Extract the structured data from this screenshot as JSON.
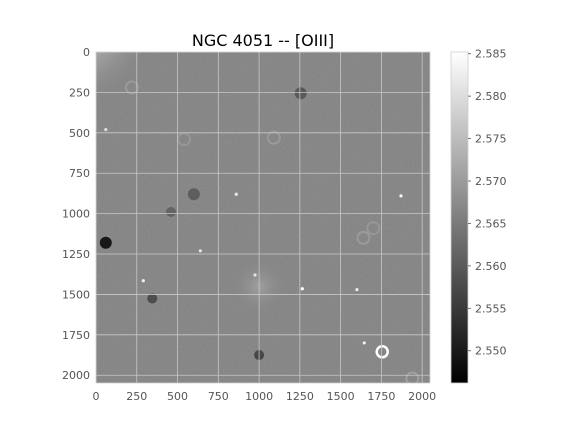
{
  "chart_data": {
    "type": "heatmap",
    "title": "NGC 4051 -- [OIII]",
    "colormap": "gray",
    "grid": true,
    "grid_color": "#c8c8c8",
    "xlim": [
      0,
      2048
    ],
    "ylim": [
      2048,
      0
    ],
    "xticks": [
      0,
      250,
      500,
      750,
      1000,
      1250,
      1500,
      1750,
      2000
    ],
    "yticks": [
      0,
      250,
      500,
      750,
      1000,
      1250,
      1500,
      1750,
      2000
    ],
    "colorbar": {
      "min": 2.5462,
      "max": 2.5852,
      "ticks": [
        "2.550",
        "2.555",
        "2.560",
        "2.565",
        "2.570",
        "2.575",
        "2.580",
        "2.585"
      ],
      "tick_values": [
        2.55,
        2.555,
        2.56,
        2.565,
        2.57,
        2.575,
        2.58,
        2.585
      ]
    },
    "background_level": 2.566,
    "features": [
      {
        "kind": "bright_point",
        "x": 975,
        "y": 1380,
        "value": 2.585
      },
      {
        "kind": "bright_point",
        "x": 1265,
        "y": 1465,
        "value": 2.585
      },
      {
        "kind": "bright_point",
        "x": 1870,
        "y": 890,
        "value": 2.584
      },
      {
        "kind": "bright_point",
        "x": 860,
        "y": 880,
        "value": 2.582
      },
      {
        "kind": "bright_point",
        "x": 290,
        "y": 1415,
        "value": 2.583
      },
      {
        "kind": "bright_point",
        "x": 640,
        "y": 1230,
        "value": 2.581
      },
      {
        "kind": "bright_point",
        "x": 1600,
        "y": 1470,
        "value": 2.582
      },
      {
        "kind": "bright_point",
        "x": 1645,
        "y": 1800,
        "value": 2.583
      },
      {
        "kind": "bright_point",
        "x": 60,
        "y": 480,
        "value": 2.58
      },
      {
        "kind": "bright_ring",
        "x": 1755,
        "y": 1855,
        "value": 2.585
      },
      {
        "kind": "dark_spot",
        "x": 60,
        "y": 1180,
        "value": 2.548
      },
      {
        "kind": "dark_spot",
        "x": 1000,
        "y": 1875,
        "value": 2.556
      },
      {
        "kind": "dark_spot",
        "x": 1255,
        "y": 255,
        "value": 2.559
      },
      {
        "kind": "dark_spot",
        "x": 345,
        "y": 1525,
        "value": 2.557
      },
      {
        "kind": "dark_spot",
        "x": 600,
        "y": 880,
        "value": 2.56
      },
      {
        "kind": "dark_spot",
        "x": 460,
        "y": 990,
        "value": 2.561
      },
      {
        "kind": "faint_ring",
        "x": 220,
        "y": 220,
        "value": 2.571
      },
      {
        "kind": "faint_ring",
        "x": 540,
        "y": 540,
        "value": 2.57
      },
      {
        "kind": "faint_ring",
        "x": 1090,
        "y": 530,
        "value": 2.571
      },
      {
        "kind": "faint_ring",
        "x": 1640,
        "y": 1150,
        "value": 2.571
      },
      {
        "kind": "faint_ring",
        "x": 1700,
        "y": 1090,
        "value": 2.57
      },
      {
        "kind": "faint_ring",
        "x": 1940,
        "y": 2020,
        "value": 2.572
      },
      {
        "kind": "glow",
        "x": 80,
        "y": 40,
        "value": 2.582
      },
      {
        "kind": "glow",
        "x": 1000,
        "y": 1450,
        "value": 2.569
      }
    ]
  }
}
